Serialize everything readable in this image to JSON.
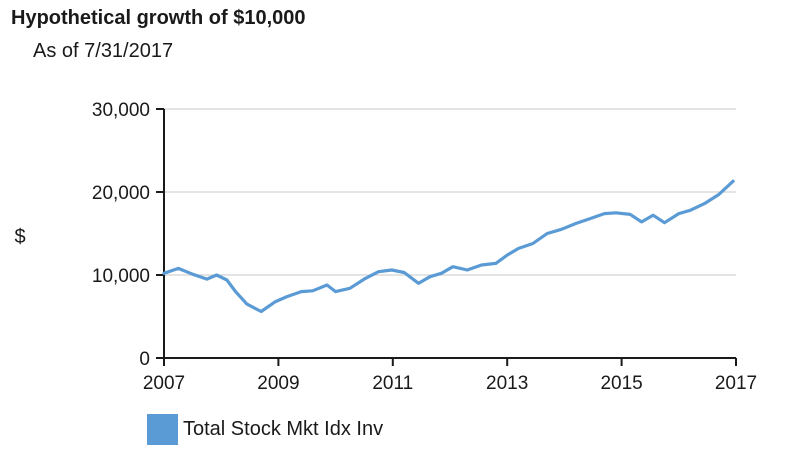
{
  "chart_data": {
    "type": "line",
    "title": "Hypothetical growth of $10,000",
    "subtitle": "As of 7/31/2017",
    "ylabel": "$",
    "xlim": [
      2007,
      2017
    ],
    "ylim": [
      0,
      30000
    ],
    "y_ticks": [
      0,
      10000,
      20000,
      30000
    ],
    "y_tick_labels": [
      "0",
      "10,000",
      "20,000",
      "30,000"
    ],
    "x_ticks": [
      2007,
      2009,
      2011,
      2013,
      2015,
      2017
    ],
    "x_tick_labels": [
      "2007",
      "2009",
      "2011",
      "2013",
      "2015",
      "2017"
    ],
    "grid": true,
    "legend_position": "bottom-left",
    "series": [
      {
        "name": "Total Stock Mkt Idx Inv",
        "color": "#5b9bd5",
        "x": [
          2007.0,
          2007.25,
          2007.5,
          2007.75,
          2007.92,
          2008.1,
          2008.25,
          2008.45,
          2008.7,
          2008.95,
          2009.15,
          2009.4,
          2009.6,
          2009.85,
          2010.0,
          2010.25,
          2010.5,
          2010.75,
          2010.98,
          2011.2,
          2011.45,
          2011.65,
          2011.85,
          2012.05,
          2012.3,
          2012.55,
          2012.8,
          2013.0,
          2013.2,
          2013.45,
          2013.7,
          2013.95,
          2014.2,
          2014.45,
          2014.7,
          2014.9,
          2015.15,
          2015.35,
          2015.55,
          2015.75,
          2016.0,
          2016.2,
          2016.45,
          2016.7,
          2016.95
        ],
        "values": [
          10200,
          10800,
          10100,
          9500,
          10000,
          9400,
          8000,
          6500,
          5600,
          6800,
          7400,
          8000,
          8100,
          8800,
          8000,
          8400,
          9500,
          10400,
          10600,
          10300,
          9000,
          9800,
          10200,
          11000,
          10600,
          11200,
          11400,
          12400,
          13200,
          13800,
          15000,
          15500,
          16200,
          16800,
          17400,
          17500,
          17300,
          16400,
          17200,
          16300,
          17400,
          17800,
          18600,
          19700,
          21300
        ]
      }
    ]
  }
}
